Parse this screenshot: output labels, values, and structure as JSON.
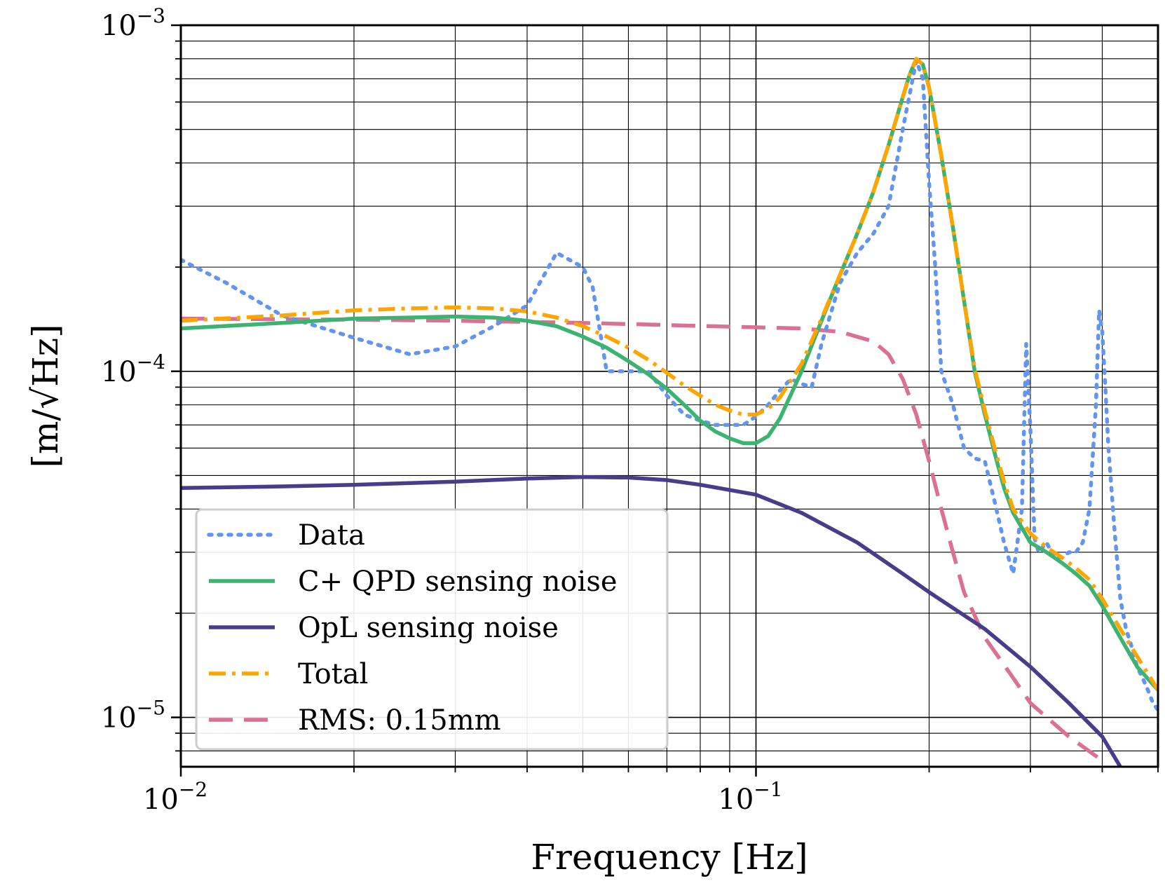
{
  "chart_data": {
    "type": "line",
    "title": "",
    "xlabel": "Frequency [Hz]",
    "ylabel": "[m/√Hz]",
    "xscale": "log",
    "yscale": "log",
    "xlim": [
      0.01,
      0.5
    ],
    "ylim": [
      7.2e-06,
      0.001
    ],
    "grid": "major and minor",
    "legend_location": "lower-left",
    "x_ticks": [
      {
        "value": 0.01,
        "base": "10",
        "exp": "−2"
      },
      {
        "value": 0.1,
        "base": "10",
        "exp": "−1"
      }
    ],
    "y_ticks": [
      {
        "value": 1e-05,
        "base": "10",
        "exp": "−5"
      },
      {
        "value": 0.0001,
        "base": "10",
        "exp": "−4"
      },
      {
        "value": 0.001,
        "base": "10",
        "exp": "−3"
      }
    ],
    "series": [
      {
        "name": "Data",
        "color": "#6495ED",
        "style": "dotted",
        "x": [
          0.01,
          0.012,
          0.015,
          0.02,
          0.025,
          0.03,
          0.035,
          0.04,
          0.045,
          0.05,
          0.052,
          0.055,
          0.06,
          0.065,
          0.07,
          0.075,
          0.08,
          0.085,
          0.09,
          0.095,
          0.1,
          0.105,
          0.11,
          0.115,
          0.12,
          0.125,
          0.13,
          0.14,
          0.15,
          0.16,
          0.17,
          0.18,
          0.19,
          0.195,
          0.2,
          0.205,
          0.21,
          0.22,
          0.23,
          0.24,
          0.25,
          0.26,
          0.27,
          0.28,
          0.29,
          0.295,
          0.3,
          0.305,
          0.31,
          0.315,
          0.32,
          0.33,
          0.34,
          0.35,
          0.36,
          0.37,
          0.38,
          0.39,
          0.395,
          0.4,
          0.405,
          0.41,
          0.42,
          0.43,
          0.44,
          0.45,
          0.46,
          0.47,
          0.48,
          0.49,
          0.5
        ],
        "y": [
          0.00021,
          0.00018,
          0.000145,
          0.000125,
          0.000112,
          0.000118,
          0.000135,
          0.000155,
          0.00022,
          0.0002,
          0.000175,
          0.0001,
          0.0001,
          0.0001,
          8.5e-05,
          7.5e-05,
          7.2e-05,
          7e-05,
          7e-05,
          7e-05,
          7.4e-05,
          8e-05,
          8.8e-05,
          9.5e-05,
          9.2e-05,
          9e-05,
          0.00012,
          0.00018,
          0.00022,
          0.00025,
          0.0003,
          0.0005,
          0.00079,
          0.0007,
          0.00035,
          0.0002,
          0.0001,
          8e-05,
          6e-05,
          5.6e-05,
          5.5e-05,
          4.2e-05,
          3.2e-05,
          2.6e-05,
          4e-05,
          0.00012,
          6.8e-05,
          3.3e-05,
          3e-05,
          3.1e-05,
          3.2e-05,
          2.9e-05,
          2.9e-05,
          3e-05,
          3e-05,
          3.2e-05,
          4e-05,
          8e-05,
          0.00015,
          0.00013,
          9e-05,
          6e-05,
          3.5e-05,
          2.2e-05,
          1.8e-05,
          1.6e-05,
          1.4e-05,
          1.3e-05,
          1.2e-05,
          1.1e-05,
          1.05e-05
        ]
      },
      {
        "name": "C+ QPD sensing noise",
        "color": "#3CB371",
        "style": "solid",
        "x": [
          0.01,
          0.015,
          0.02,
          0.025,
          0.03,
          0.035,
          0.04,
          0.045,
          0.05,
          0.055,
          0.06,
          0.065,
          0.07,
          0.075,
          0.08,
          0.085,
          0.09,
          0.095,
          0.1,
          0.105,
          0.11,
          0.12,
          0.13,
          0.14,
          0.15,
          0.16,
          0.17,
          0.18,
          0.185,
          0.19,
          0.195,
          0.2,
          0.21,
          0.22,
          0.23,
          0.24,
          0.25,
          0.26,
          0.27,
          0.28,
          0.3,
          0.32,
          0.34,
          0.36,
          0.38,
          0.4,
          0.43,
          0.46,
          0.5
        ],
        "y": [
          0.000133,
          0.000138,
          0.000142,
          0.000143,
          0.000144,
          0.000143,
          0.00014,
          0.000135,
          0.000126,
          0.000117,
          0.000107,
          9.8e-05,
          8.9e-05,
          8e-05,
          7.2e-05,
          6.7e-05,
          6.4e-05,
          6.2e-05,
          6.2e-05,
          6.5e-05,
          7.3e-05,
          0.0001,
          0.00014,
          0.00019,
          0.00025,
          0.00033,
          0.00045,
          0.00062,
          0.00072,
          0.0008,
          0.00077,
          0.00066,
          0.00042,
          0.00026,
          0.00016,
          0.0001,
          7.5e-05,
          5.8e-05,
          4.6e-05,
          3.9e-05,
          3.2e-05,
          3e-05,
          2.8e-05,
          2.6e-05,
          2.4e-05,
          2.1e-05,
          1.7e-05,
          1.4e-05,
          1.2e-05
        ]
      },
      {
        "name": "OpL sensing noise",
        "color": "#483D8B",
        "style": "solid",
        "x": [
          0.01,
          0.015,
          0.02,
          0.03,
          0.04,
          0.05,
          0.06,
          0.07,
          0.08,
          0.1,
          0.12,
          0.15,
          0.18,
          0.2,
          0.25,
          0.3,
          0.35,
          0.4,
          0.43
        ],
        "y": [
          4.6e-05,
          4.65e-05,
          4.7e-05,
          4.8e-05,
          4.9e-05,
          4.95e-05,
          4.93e-05,
          4.85e-05,
          4.7e-05,
          4.4e-05,
          3.9e-05,
          3.2e-05,
          2.6e-05,
          2.3e-05,
          1.8e-05,
          1.4e-05,
          1.1e-05,
          8.8e-06,
          7.2e-06
        ]
      },
      {
        "name": "Total",
        "color": "#FFA500",
        "style": "dashdot",
        "x": [
          0.01,
          0.015,
          0.02,
          0.025,
          0.03,
          0.035,
          0.04,
          0.045,
          0.05,
          0.055,
          0.06,
          0.065,
          0.07,
          0.075,
          0.08,
          0.085,
          0.09,
          0.095,
          0.1,
          0.105,
          0.11,
          0.12,
          0.13,
          0.14,
          0.15,
          0.16,
          0.17,
          0.18,
          0.185,
          0.19,
          0.195,
          0.2,
          0.21,
          0.22,
          0.23,
          0.24,
          0.25,
          0.26,
          0.27,
          0.28,
          0.3,
          0.32,
          0.34,
          0.36,
          0.38,
          0.4,
          0.43,
          0.46,
          0.5
        ],
        "y": [
          0.00014,
          0.000145,
          0.00015,
          0.000152,
          0.000153,
          0.000152,
          0.000149,
          0.000143,
          0.000135,
          0.000126,
          0.000117,
          0.000108,
          9.9e-05,
          9.1e-05,
          8.5e-05,
          8e-05,
          7.7e-05,
          7.5e-05,
          7.5e-05,
          7.8e-05,
          8.4e-05,
          0.000105,
          0.000142,
          0.00019,
          0.00025,
          0.00033,
          0.00045,
          0.00062,
          0.00072,
          0.0008,
          0.00077,
          0.00066,
          0.00042,
          0.00026,
          0.00016,
          0.000102,
          7.7e-05,
          6e-05,
          4.8e-05,
          4e-05,
          3.4e-05,
          3.1e-05,
          2.9e-05,
          2.7e-05,
          2.5e-05,
          2.2e-05,
          1.8e-05,
          1.5e-05,
          1.2e-05
        ]
      },
      {
        "name": "RMS:  0.15mm",
        "color": "#DB7093",
        "style": "dashed",
        "x": [
          0.01,
          0.02,
          0.03,
          0.05,
          0.07,
          0.1,
          0.12,
          0.14,
          0.16,
          0.17,
          0.18,
          0.19,
          0.2,
          0.21,
          0.22,
          0.23,
          0.25,
          0.28,
          0.3,
          0.35,
          0.4
        ],
        "y": [
          0.000142,
          0.000141,
          0.00014,
          0.000138,
          0.000136,
          0.000134,
          0.000133,
          0.00013,
          0.000122,
          0.000112,
          9.5e-05,
          7.5e-05,
          5.5e-05,
          4e-05,
          3e-05,
          2.3e-05,
          1.7e-05,
          1.3e-05,
          1.1e-05,
          8.8e-06,
          7.5e-06
        ]
      }
    ]
  }
}
